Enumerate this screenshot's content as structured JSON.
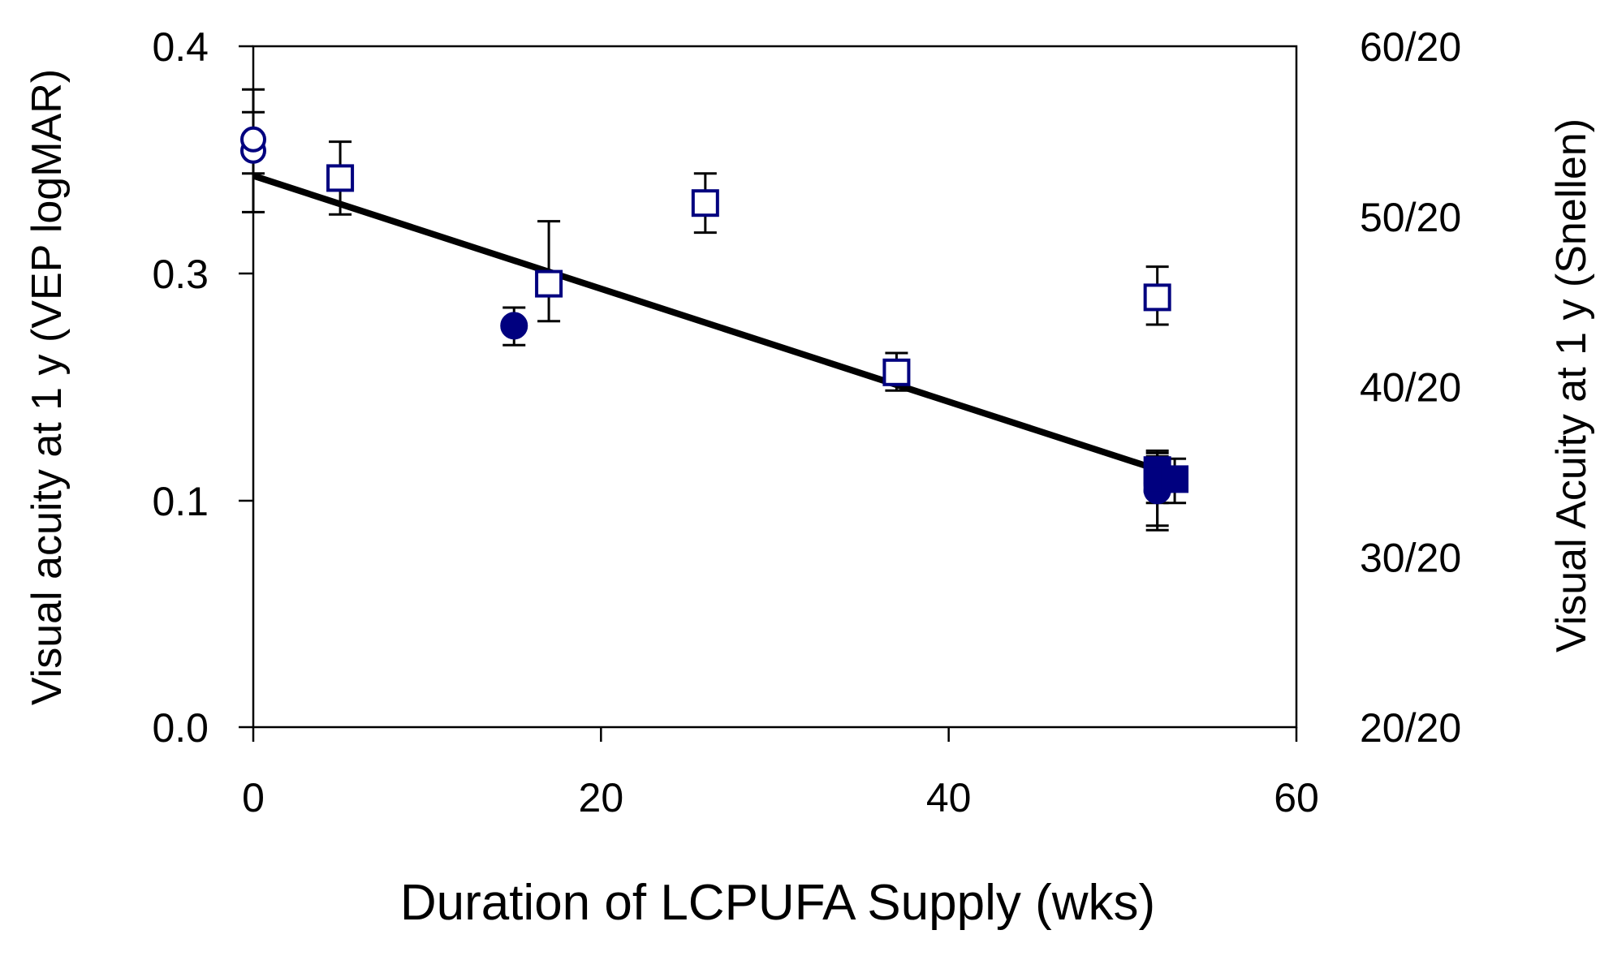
{
  "chart_data": {
    "type": "scatter",
    "title": "",
    "xlabel": "Duration of LCPUFA Supply (wks)",
    "ylabel": "Visual acuity at 1 y (VEP logMAR)",
    "ylabel_right": "Visual Acuity at 1 y (Snellen)",
    "xlim": [
      0,
      60
    ],
    "ylim": [
      0.0,
      0.4
    ],
    "x_ticks": [
      0,
      20,
      40,
      60
    ],
    "x_tick_labels": [
      "0",
      "20",
      "40",
      "60"
    ],
    "y_ticks": [
      0.0,
      0.1,
      0.3,
      0.4
    ],
    "y_tick_labels": [
      "0.0",
      "0.1",
      "0.3",
      "0.4"
    ],
    "y_right_tick_labels": [
      "20/20",
      "30/20",
      "40/20",
      "50/20",
      "60/20"
    ],
    "grid": false,
    "colors": {
      "marker": "#00007F",
      "line": "#000000",
      "errorbar": "#000000"
    },
    "series": [
      {
        "name": "open circles",
        "marker": "open-circle",
        "points": [
          {
            "x": 0,
            "y": 0.354,
            "err_low": 0.027,
            "err_high": 0.017
          },
          {
            "x": 0,
            "y": 0.359,
            "err_low": 0.015,
            "err_high": 0.022
          }
        ]
      },
      {
        "name": "open squares",
        "marker": "open-square",
        "points": [
          {
            "x": 5,
            "y": 0.342,
            "err_low": 0.016,
            "err_high": 0.016
          },
          {
            "x": 17,
            "y": 0.291,
            "err_low": 0.033,
            "err_high": 0.032
          },
          {
            "x": 26,
            "y": 0.331,
            "err_low": 0.013,
            "err_high": 0.013
          },
          {
            "x": 37,
            "y": 0.213,
            "err_low": 0.016,
            "err_high": 0.017
          },
          {
            "x": 52,
            "y": 0.279,
            "err_low": 0.024,
            "err_high": 0.024
          }
        ]
      },
      {
        "name": "filled circles",
        "marker": "filled-circle",
        "points": [
          {
            "x": 15,
            "y": 0.254,
            "err_low": 0.017,
            "err_high": 0.016
          },
          {
            "x": 52,
            "y": 0.114,
            "err_low": 0.025,
            "err_high": 0.03
          },
          {
            "x": 52,
            "y": 0.109,
            "err_low": 0.022,
            "err_high": 0.028
          }
        ]
      },
      {
        "name": "filled squares",
        "marker": "filled-square",
        "points": [
          {
            "x": 52,
            "y": 0.127,
            "err_low": 0.02,
            "err_high": 0.015
          },
          {
            "x": 52,
            "y": 0.119,
            "err_low": 0.02,
            "err_high": 0.02
          },
          {
            "x": 53,
            "y": 0.119,
            "err_low": 0.02,
            "err_high": 0.018
          }
        ]
      }
    ],
    "regression_line": {
      "x": [
        0,
        52.5
      ],
      "y": [
        0.343,
        0.125
      ]
    }
  }
}
